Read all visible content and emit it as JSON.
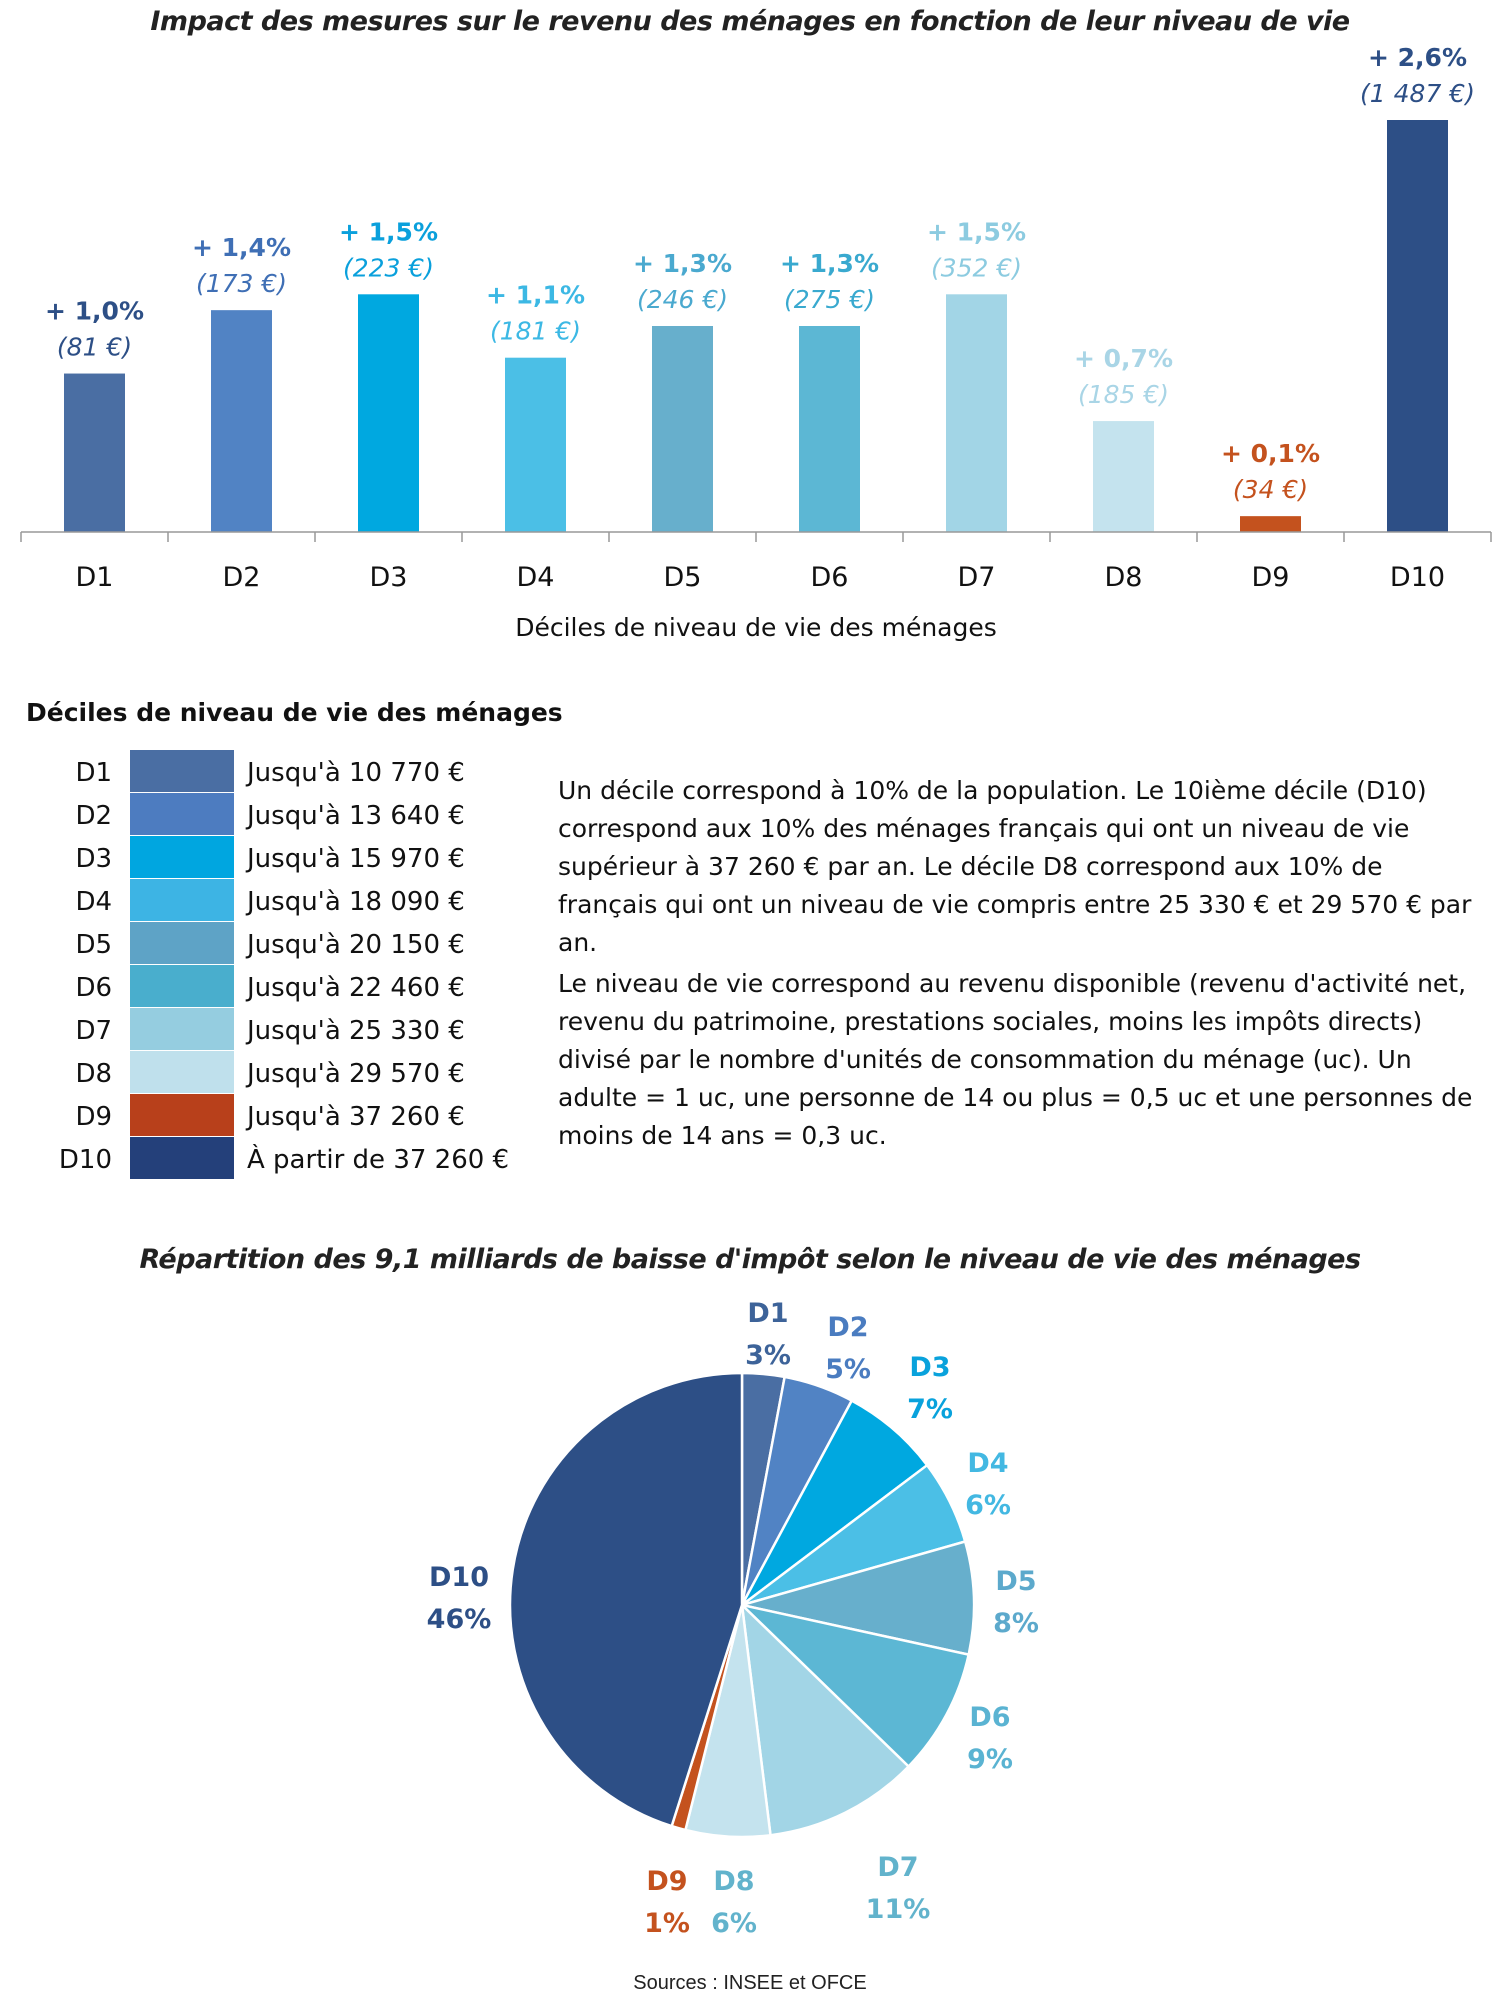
{
  "titles": {
    "bar": "Impact des mesures sur le revenu des ménages en fonction de leur niveau de vie",
    "pie": "Répartition des 9,1 milliards de baisse d'impôt selon le niveau de vie des ménages"
  },
  "colors": {
    "D1": "#4a6ea3",
    "D2": "#5183c4",
    "D3": "#00a8e0",
    "D4": "#4bbfe6",
    "D5": "#67afcc",
    "D6": "#5cb7d4",
    "D7": "#a2d5e6",
    "D8": "#c4e3ee",
    "D9": "#c4521e",
    "D10": "#2d4f86"
  },
  "chart_data": [
    {
      "type": "bar",
      "title": "Impact des mesures sur le revenu des ménages en fonction de leur niveau de vie",
      "xlabel": "Déciles de niveau de vie des ménages",
      "ylabel": "",
      "categories": [
        "D1",
        "D2",
        "D3",
        "D4",
        "D5",
        "D6",
        "D7",
        "D8",
        "D9",
        "D10"
      ],
      "values": [
        1.0,
        1.4,
        1.5,
        1.1,
        1.3,
        1.3,
        1.5,
        0.7,
        0.1,
        2.6
      ],
      "ylim": [
        0,
        2.6
      ],
      "pct_labels": [
        "+ 1,0%",
        "+ 1,4%",
        "+ 1,5%",
        "+ 1,1%",
        "+ 1,3%",
        "+ 1,3%",
        "+ 1,5%",
        "+ 0,7%",
        "+ 0,1%",
        "+ 2,6%"
      ],
      "euro_labels": [
        "(81 €)",
        "(173 €)",
        "(223 €)",
        "(181 €)",
        "(246 €)",
        "(275 €)",
        "(352 €)",
        "(185 €)",
        "(34 €)",
        "(1 487 €)"
      ],
      "grid": false
    },
    {
      "type": "pie",
      "title": "Répartition des 9,1 milliards de baisse d'impôt selon le niveau de vie des ménages",
      "categories": [
        "D1",
        "D2",
        "D3",
        "D4",
        "D5",
        "D6",
        "D7",
        "D8",
        "D9",
        "D10"
      ],
      "values": [
        3,
        5,
        7,
        6,
        8,
        9,
        11,
        6,
        1,
        46
      ],
      "value_labels": [
        "3%",
        "5%",
        "7%",
        "6%",
        "8%",
        "9%",
        "11%",
        "6%",
        "1%",
        "46%"
      ]
    }
  ],
  "legend": {
    "title": "Déciles de niveau de vie des ménages",
    "items": [
      {
        "decile": "D1",
        "range": "Jusqu'à 10 770 €",
        "color": "#4a6ea3"
      },
      {
        "decile": "D2",
        "range": "Jusqu'à 13 640 €",
        "color": "#4d7cc0"
      },
      {
        "decile": "D3",
        "range": "Jusqu'à 15 970 €",
        "color": "#00a6e0"
      },
      {
        "decile": "D4",
        "range": "Jusqu'à 18 090 €",
        "color": "#3db4e4"
      },
      {
        "decile": "D5",
        "range": "Jusqu'à 20 150 €",
        "color": "#5ea3c6"
      },
      {
        "decile": "D6",
        "range": "Jusqu'à 22 460 €",
        "color": "#49aecd"
      },
      {
        "decile": "D7",
        "range": "Jusqu'à 25 330 €",
        "color": "#95cde0"
      },
      {
        "decile": "D8",
        "range": "Jusqu'à 29 570 €",
        "color": "#bfe0ec"
      },
      {
        "decile": "D9",
        "range": "Jusqu'à 37 260 €",
        "color": "#b8401b"
      },
      {
        "decile": "D10",
        "range": "À partir de 37 260 €",
        "color": "#24407a"
      }
    ]
  },
  "notes": {
    "p1": "Un décile correspond à 10% de la population. Le 10ième décile (D10) correspond aux 10% des ménages français qui ont un niveau de vie supérieur à 37 260 € par an. Le décile D8 correspond aux 10% de français qui ont un niveau de vie compris entre 25 330 € et 29 570 € par an.",
    "p2": "Le niveau de vie correspond au revenu disponible (revenu d'activité net, revenu du patrimoine, prestations sociales, moins les impôts directs) divisé par le nombre d'unités de consommation du ménage (uc). Un adulte = 1 uc, une personne de 14 ou plus = 0,5 uc et une personnes de moins de 14 ans = 0,3 uc."
  },
  "source": "Sources : INSEE et OFCE"
}
